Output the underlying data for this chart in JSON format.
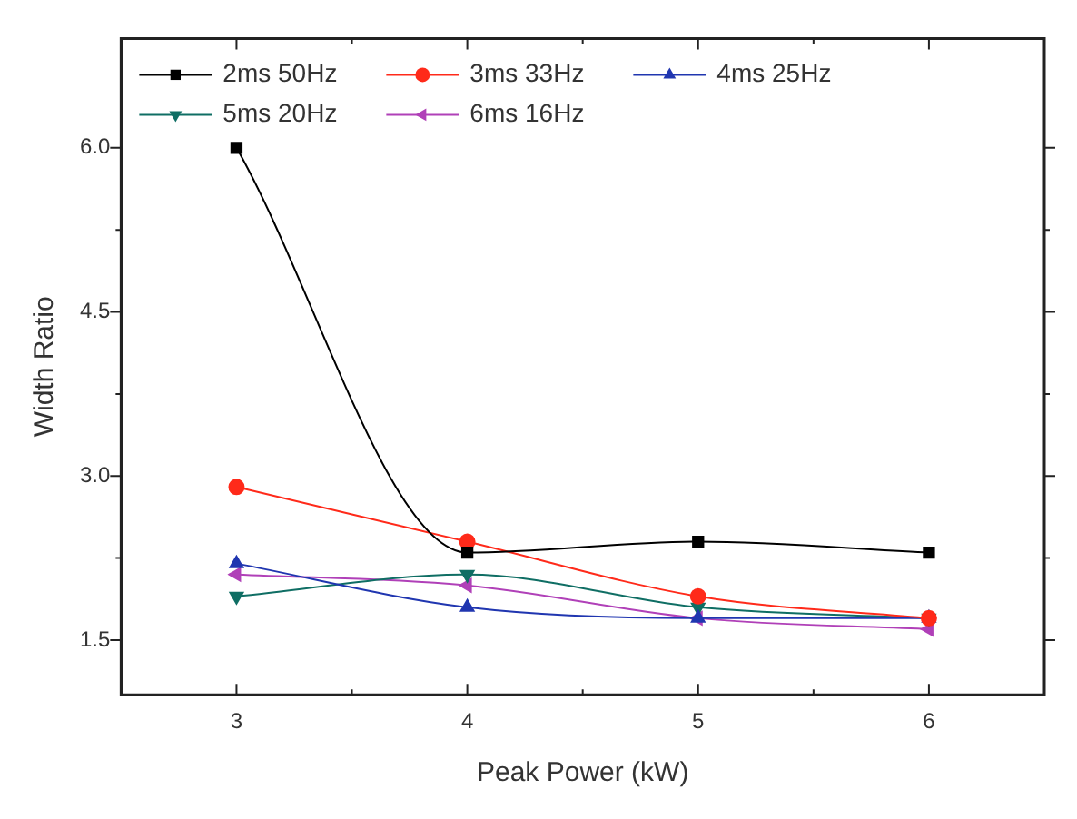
{
  "chart_data": {
    "type": "line",
    "xlabel": "Peak Power (kW)",
    "ylabel": "Width Ratio",
    "x": [
      3,
      4,
      5,
      6
    ],
    "xlim": [
      2.5,
      6.5
    ],
    "xticks": [
      3,
      {
        "value": 3.5,
        "label": null
      },
      4,
      {
        "value": 4.5,
        "label": null
      },
      5,
      {
        "value": 5.5,
        "label": null
      },
      6
    ],
    "ylim": [
      1,
      7
    ],
    "yticks": [
      {
        "value": 1.5,
        "label": "1.5"
      },
      {
        "value": 2.25,
        "label": null
      },
      {
        "value": 3,
        "label": "3.0"
      },
      {
        "value": 3.75,
        "label": null
      },
      {
        "value": 4.5,
        "label": "4.5"
      },
      {
        "value": 5.25,
        "label": null
      },
      {
        "value": 6,
        "label": "6.0"
      }
    ],
    "legend": "top left",
    "grid": false,
    "series": [
      {
        "name": "2ms 50Hz",
        "color": "#000000",
        "marker": "square",
        "values": [
          6.0,
          2.3,
          2.4,
          2.3
        ]
      },
      {
        "name": "3ms 33Hz",
        "color": "#ff2a1a",
        "marker": "circle",
        "values": [
          2.9,
          2.4,
          1.9,
          1.7
        ]
      },
      {
        "name": "4ms 25Hz",
        "color": "#2036b0",
        "marker": "triangle",
        "values": [
          2.2,
          1.8,
          1.7,
          1.7
        ]
      },
      {
        "name": "5ms 20Hz",
        "color": "#0f6e64",
        "marker": "triangle-down",
        "values": [
          1.9,
          2.1,
          1.8,
          1.7
        ]
      },
      {
        "name": "6ms 16Hz",
        "color": "#b040b8",
        "marker": "triangle-left",
        "values": [
          2.1,
          2.0,
          1.7,
          1.6
        ]
      }
    ]
  }
}
